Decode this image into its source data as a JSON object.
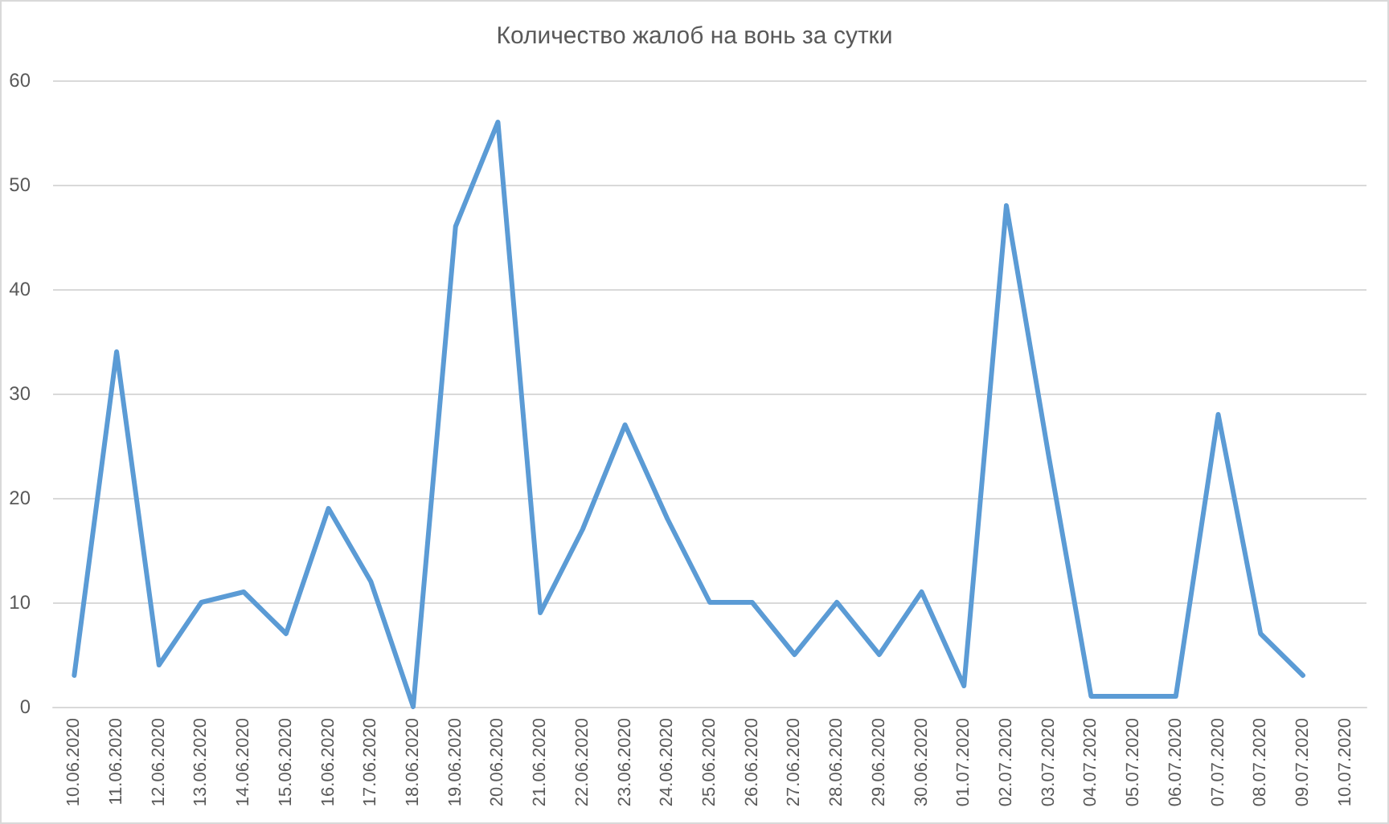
{
  "chart_data": {
    "type": "line",
    "title": "Количество жалоб на вонь за сутки",
    "categories": [
      "10.06.2020",
      "11.06.2020",
      "12.06.2020",
      "13.06.2020",
      "14.06.2020",
      "15.06.2020",
      "16.06.2020",
      "17.06.2020",
      "18.06.2020",
      "19.06.2020",
      "20.06.2020",
      "21.06.2020",
      "22.06.2020",
      "23.06.2020",
      "24.06.2020",
      "25.06.2020",
      "26.06.2020",
      "27.06.2020",
      "28.06.2020",
      "29.06.2020",
      "30.06.2020",
      "01.07.2020",
      "02.07.2020",
      "03.07.2020",
      "04.07.2020",
      "05.07.2020",
      "06.07.2020",
      "07.07.2020",
      "08.07.2020",
      "09.07.2020",
      "10.07.2020"
    ],
    "values": [
      3,
      34,
      4,
      10,
      11,
      7,
      19,
      12,
      0,
      46,
      56,
      9,
      17,
      27,
      18,
      10,
      10,
      5,
      10,
      5,
      11,
      2,
      48,
      24,
      1,
      1,
      1,
      28,
      7,
      3,
      null
    ],
    "color": "#5b9bd5",
    "ylim": [
      0,
      60
    ],
    "yticks": [
      0,
      10,
      20,
      30,
      40,
      50,
      60
    ],
    "grid": "y"
  }
}
